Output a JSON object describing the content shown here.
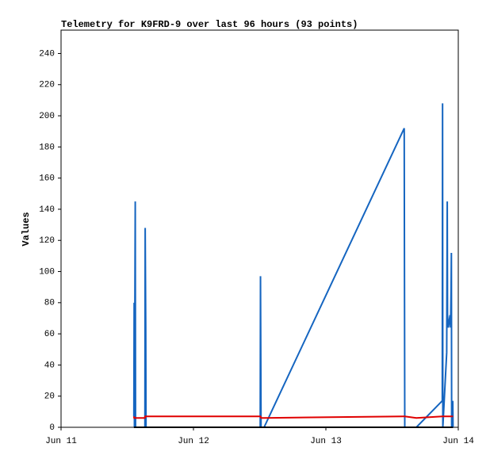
{
  "chart_data": {
    "type": "line",
    "title": "Telemetry for K9FRD-9 over last 96 hours (93 points)",
    "y_label": "Values",
    "x": [
      13.2,
      13.25,
      13.3,
      13.45,
      13.5,
      15.2,
      15.25,
      15.35,
      15.4,
      36.1,
      36.15,
      36.25,
      36.8,
      62.2,
      62.3,
      64.4,
      69.1,
      69.15,
      69.2,
      69.9,
      70.0,
      70.05,
      70.2,
      70.5,
      70.6,
      70.7,
      70.75,
      70.8,
      71.0,
      71.05
    ],
    "series": [
      {
        "color": "#1565c0",
        "values": [
          7,
          80,
          0,
          145,
          0,
          0,
          128,
          64,
          0,
          0,
          97,
          0,
          0,
          192,
          0,
          0,
          17,
          208,
          0,
          48,
          145,
          72,
          64,
          72,
          64,
          89,
          112,
          0,
          17,
          0
        ]
      },
      {
        "color": "#e00000",
        "values": [
          7,
          6,
          6,
          6,
          6,
          6,
          7,
          7,
          7,
          7,
          7,
          6,
          6,
          7,
          7,
          6,
          7,
          7,
          7,
          7,
          7,
          7,
          7,
          7,
          7,
          7,
          7,
          7,
          7,
          7
        ]
      },
      {
        "color": "#000000",
        "values": [
          0,
          0,
          0,
          0,
          0,
          0,
          0,
          0,
          0,
          0,
          0,
          0,
          0,
          0,
          0,
          0,
          0,
          0,
          0,
          0,
          0,
          0,
          0,
          0,
          0,
          0,
          0,
          0,
          0,
          0
        ]
      }
    ],
    "xlim": [
      0,
      72
    ],
    "xticks": [
      {
        "value": 0,
        "label": "Jun 11"
      },
      {
        "value": 24,
        "label": "Jun 12"
      },
      {
        "value": 48,
        "label": "Jun 13"
      },
      {
        "value": 72,
        "label": "Jun 14"
      }
    ],
    "ylim": [
      0,
      255
    ],
    "yticks": [
      0,
      20,
      40,
      60,
      80,
      100,
      120,
      140,
      160,
      180,
      200,
      220,
      240
    ],
    "grid": false
  }
}
